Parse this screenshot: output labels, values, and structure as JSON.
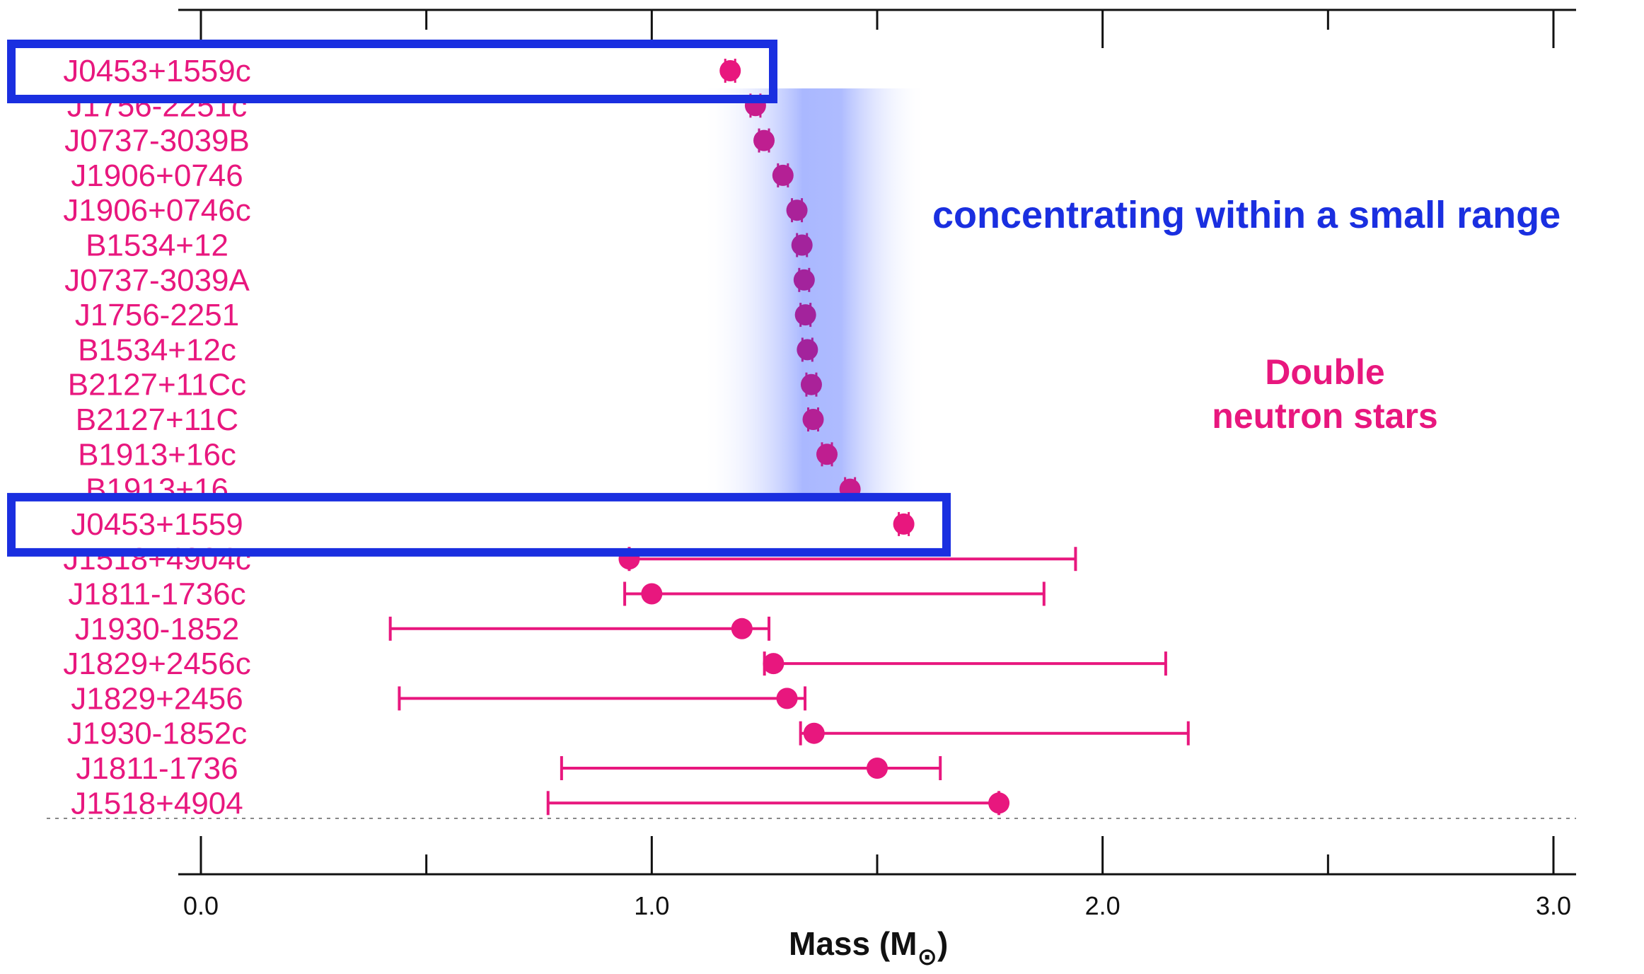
{
  "chart_data": {
    "type": "scatter",
    "xlabel": "Mass (M",
    "xlabel_suffix": "⊙",
    "xlabel_close": ")",
    "xlim": [
      0.0,
      3.0
    ],
    "x_ticks_labeled": [
      "0.0",
      "1.0",
      "2.0",
      "3.0"
    ],
    "x_ticks_major": [
      0.0,
      1.0,
      2.0,
      3.0
    ],
    "x_ticks_minor": [
      0.5,
      1.5,
      2.5
    ],
    "grid": false,
    "highlight_band": [
      1.11,
      1.61
    ],
    "annotations": {
      "range_note": "concentrating within a small range",
      "group_line1": "Double",
      "group_line2": "neutron stars"
    },
    "colors": {
      "pink": "#e8177e",
      "purple": "#a3239c",
      "blue_box": "#1a2fe0",
      "band": "#aab8ff"
    },
    "highlighted_rows": [
      0,
      13
    ],
    "points": [
      {
        "name": "J0453+1559c",
        "mass": 1.174,
        "err_low": 0.004,
        "err_high": 0.004
      },
      {
        "name": "J1756-2251c",
        "mass": 1.23,
        "err_low": 0.007,
        "err_high": 0.007
      },
      {
        "name": "J0737-3039B",
        "mass": 1.249,
        "err_low": 0.001,
        "err_high": 0.001
      },
      {
        "name": "J1906+0746",
        "mass": 1.291,
        "err_low": 0.011,
        "err_high": 0.011
      },
      {
        "name": "J1906+0746c",
        "mass": 1.322,
        "err_low": 0.011,
        "err_high": 0.011
      },
      {
        "name": "B1534+12",
        "mass": 1.3332,
        "err_low": 0.001,
        "err_high": 0.001
      },
      {
        "name": "J0737-3039A",
        "mass": 1.3381,
        "err_low": 0.0007,
        "err_high": 0.0007
      },
      {
        "name": "J1756-2251",
        "mass": 1.341,
        "err_low": 0.007,
        "err_high": 0.007
      },
      {
        "name": "B1534+12c",
        "mass": 1.3452,
        "err_low": 0.001,
        "err_high": 0.001
      },
      {
        "name": "B2127+11Cc",
        "mass": 1.354,
        "err_low": 0.01,
        "err_high": 0.01
      },
      {
        "name": "B2127+11C",
        "mass": 1.358,
        "err_low": 0.01,
        "err_high": 0.01
      },
      {
        "name": "B1913+16c",
        "mass": 1.3886,
        "err_low": 0.0002,
        "err_high": 0.0002
      },
      {
        "name": "B1913+16",
        "mass": 1.4398,
        "err_low": 0.0002,
        "err_high": 0.0002
      },
      {
        "name": "J0453+1559",
        "mass": 1.559,
        "err_low": 0.005,
        "err_high": 0.005
      },
      {
        "name": "J1518+4904c",
        "mass": 0.95,
        "err_low": 0.0,
        "err_high": 0.99
      },
      {
        "name": "J1811-1736c",
        "mass": 1.0,
        "err_low": 0.06,
        "err_high": 0.87
      },
      {
        "name": "J1930-1852",
        "mass": 1.2,
        "err_low": 0.78,
        "err_high": 0.06
      },
      {
        "name": "J1829+2456c",
        "mass": 1.27,
        "err_low": 0.02,
        "err_high": 0.87
      },
      {
        "name": "J1829+2456",
        "mass": 1.3,
        "err_low": 0.86,
        "err_high": 0.04
      },
      {
        "name": "J1930-1852c",
        "mass": 1.36,
        "err_low": 0.03,
        "err_high": 0.83
      },
      {
        "name": "J1811-1736",
        "mass": 1.5,
        "err_low": 0.7,
        "err_high": 0.14
      },
      {
        "name": "J1518+4904",
        "mass": 1.77,
        "err_low": 1.0,
        "err_high": 0.0
      }
    ]
  }
}
